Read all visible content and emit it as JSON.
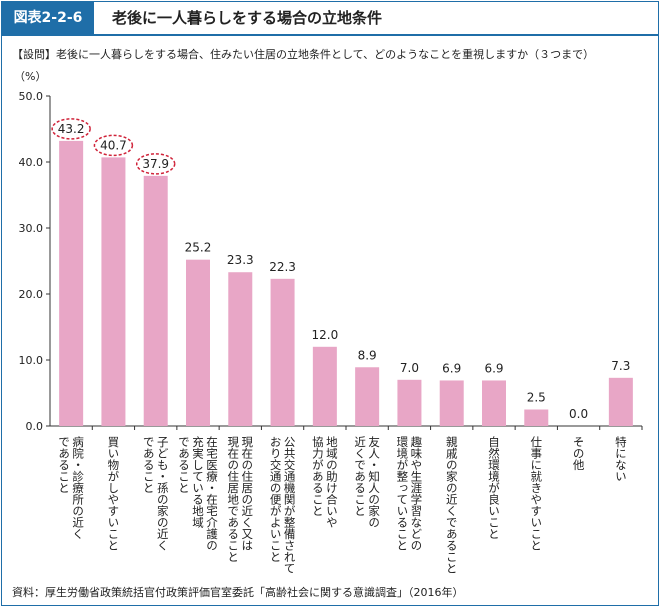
{
  "header": {
    "figure_tag": "図表2-2-6",
    "title": "老後に一人暮らしをする場合の立地条件"
  },
  "question": "【設問】老後に一人暮らしをする場合、住みたい住居の立地条件として、どのようなことを重視しますか（３つまで）",
  "source": "資料：厚生労働省政策統括官付政策評価官室委託「高齢社会に関する意識調査」（2016年）",
  "colors": {
    "bar": "#e8a6c6",
    "highlight": "#d0243a",
    "frame": "#1f6ea8"
  },
  "chart_data": {
    "type": "bar",
    "ylabel": "（%）",
    "ylim": [
      0,
      50
    ],
    "yticks": [
      "0.0",
      "10.0",
      "20.0",
      "30.0",
      "40.0",
      "50.0"
    ],
    "grid": false,
    "categories": [
      "病院・診療所の近くであること",
      "買い物がしやすいこと",
      "子ども・孫の家の近くであること",
      "在宅医療・在宅介護の充実している地域であること",
      "現在の住居の近く又は現在の住居地であること",
      "公共交通機関が整備されており交通の便がよいこと",
      "地域の助け合いや協力があること",
      "友人・知人の家の近くであること",
      "趣味や生涯学習などの環境が整っていること",
      "親戚の家の近くであること",
      "自然環境が良いこと",
      "仕事に就きやすいこと",
      "その他",
      "特にない"
    ],
    "label_lines": [
      [
        "病院・診療所の近く",
        "であること"
      ],
      [
        "買い物がしやすいこと"
      ],
      [
        "子ども・孫の家の近く",
        "であること"
      ],
      [
        "在宅医療・在宅介護の",
        "充実している地域",
        "であること"
      ],
      [
        "現在の住居の近く又は",
        "現在の住居地であること"
      ],
      [
        "公共交通機関が整備されて",
        "おり交通の便がよいこと"
      ],
      [
        "地域の助け合いや",
        "協力があること"
      ],
      [
        "友人・知人の家の",
        "近くであること"
      ],
      [
        "趣味や生涯学習などの",
        "環境が整っていること"
      ],
      [
        "親戚の家の近くであること"
      ],
      [
        "自然環境が良いこと"
      ],
      [
        "仕事に就きやすいこと"
      ],
      [
        "その他"
      ],
      [
        "特にない"
      ]
    ],
    "values": [
      43.2,
      40.7,
      37.9,
      25.2,
      23.3,
      22.3,
      12.0,
      8.9,
      7.0,
      6.9,
      6.9,
      2.5,
      0.0,
      7.3
    ],
    "value_labels": [
      "43.2",
      "40.7",
      "37.9",
      "25.2",
      "23.3",
      "22.3",
      "12.0",
      "8.9",
      "7.0",
      "6.9",
      "6.9",
      "2.5",
      "0.0",
      "7.3"
    ],
    "highlighted": [
      0,
      1,
      2
    ]
  }
}
